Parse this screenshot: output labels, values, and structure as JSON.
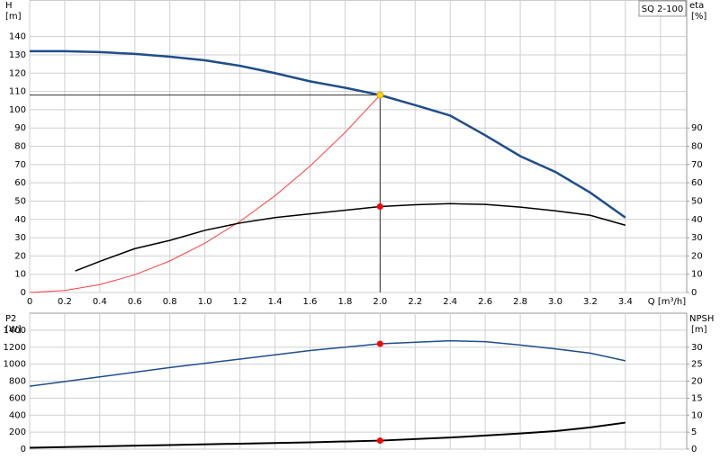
{
  "chart_data": [
    {
      "type": "line",
      "title": "SQ 2-100",
      "y_label": "H",
      "y_unit": "[m]",
      "y2_label": "eta",
      "y2_unit": "[%]",
      "xlim": [
        0,
        3.75
      ],
      "xticks": [
        0,
        0.2,
        0.4,
        0.6,
        0.8,
        {
          "value": 1,
          "label": "1.0"
        },
        1.2,
        1.4,
        1.6,
        1.8,
        {
          "value": 2,
          "label": "2.0"
        },
        2.2,
        2.4,
        2.6,
        2.8,
        {
          "value": 3,
          "label": "3.0"
        },
        3.2,
        3.4,
        {
          "value": 3.6,
          "label": "Q [m³/h]"
        }
      ],
      "ylim": [
        0,
        160
      ],
      "yticks": [
        0,
        10,
        20,
        30,
        40,
        50,
        60,
        70,
        80,
        90,
        100,
        110,
        120,
        130,
        140
      ],
      "y2lim": [
        0,
        160
      ],
      "y2ticks": [
        0,
        10,
        20,
        30,
        40,
        50,
        60,
        70,
        80,
        90
      ],
      "grid": true,
      "show_xtick_labels": true,
      "series": [
        {
          "color": "#1f4e8c",
          "x": [
            0,
            0.2,
            0.4,
            0.6,
            0.8,
            1.0,
            1.2,
            1.4,
            1.6,
            1.8,
            2.0,
            2.2,
            2.4,
            2.6,
            2.8,
            3.0,
            3.2,
            3.4
          ],
          "values": [
            132,
            132,
            131.5,
            130.5,
            129,
            127,
            124,
            120,
            115.5,
            112,
            108,
            102.5,
            96.8,
            86,
            74.6,
            66,
            54.6,
            41
          ]
        },
        {
          "color": "#ff4040",
          "x": [
            0,
            0.2,
            0.4,
            0.6,
            0.8,
            1.0,
            1.2,
            1.4,
            1.6,
            1.8,
            2.0
          ],
          "values": [
            0,
            1.1,
            4.3,
            9.7,
            17.3,
            27,
            38.9,
            52.9,
            69.1,
            87.5,
            108
          ]
        },
        {
          "color": "#000000",
          "axis": "y2",
          "x": [
            0.26,
            0.4,
            0.6,
            0.8,
            1.0,
            1.2,
            1.4,
            1.6,
            1.8,
            2.0,
            2.2,
            2.4,
            2.6,
            2.8,
            3.0,
            3.2,
            3.4
          ],
          "values": [
            11.8,
            17,
            24,
            28.5,
            34,
            38,
            41,
            43,
            45,
            47,
            48,
            48.6,
            48.2,
            46.7,
            44.7,
            42.2,
            36.8
          ]
        }
      ],
      "markers": [
        {
          "x": 2.0,
          "y": 108,
          "color": "#ffd21f",
          "guides": true
        },
        {
          "x": 2.0,
          "y": 47,
          "axis": "y2",
          "color": "#ff0000"
        }
      ]
    },
    {
      "type": "line",
      "y_label": "P2",
      "y_unit": "[W]",
      "y2_label": "NPSH",
      "y2_unit": "[m]",
      "xlim": [
        0,
        3.75
      ],
      "xticks": [
        0,
        0.2,
        0.4,
        0.6,
        0.8,
        1,
        1.2,
        1.4,
        1.6,
        1.8,
        2,
        2.2,
        2.4,
        2.6,
        2.8,
        3,
        3.2,
        3.4,
        3.6
      ],
      "ylim": [
        0,
        1600
      ],
      "yticks": [
        0,
        200,
        400,
        600,
        800,
        1000,
        1200,
        1400
      ],
      "y2lim": [
        0,
        40
      ],
      "y2ticks": [
        0,
        5,
        10,
        15,
        20,
        25,
        30
      ],
      "grid": true,
      "show_xtick_labels": false,
      "series": [
        {
          "color": "#1f4e8c",
          "x": [
            0,
            0.4,
            0.8,
            1.2,
            1.6,
            2.0,
            2.4,
            2.6,
            2.8,
            3.0,
            3.2,
            3.4
          ],
          "values": [
            740,
            850,
            960,
            1060,
            1160,
            1240,
            1275,
            1265,
            1225,
            1180,
            1130,
            1040
          ]
        },
        {
          "color": "#000000",
          "axis": "y2",
          "x": [
            0,
            0.4,
            0.8,
            1.2,
            1.6,
            2.0,
            2.4,
            2.8,
            3.0,
            3.2,
            3.4
          ],
          "values": [
            0.4,
            0.8,
            1.2,
            1.6,
            2.0,
            2.5,
            3.4,
            4.6,
            5.3,
            6.4,
            7.8
          ]
        }
      ],
      "markers": [
        {
          "x": 2.0,
          "y": 1240,
          "color": "#ff0000"
        },
        {
          "x": 2.0,
          "y": 2.5,
          "axis": "y2",
          "color": "#ff0000"
        }
      ]
    }
  ]
}
